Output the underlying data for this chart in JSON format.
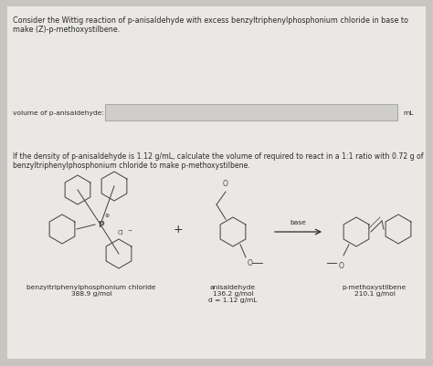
{
  "bg_color": "#c8c5c0",
  "panel_color": "#eae8e4",
  "title_line1": "Consider the Wittig reaction of p-anisaldehyde with excess benzyltriphenylphosphonium chloride in base to",
  "title_line2": "make (Z)-p-methoxystilbene.",
  "reagent1_label": "benzyltriphenylphosphonium chloride\n388.9 g/mol",
  "reagent2_label": "anisaldehyde\n136.2 g/mol\nd = 1.12 g/mL",
  "product_label": "p-methoxystilbene\n210.1 g/mol",
  "arrow_label": "base",
  "question_text": "If the density of p-anisaldehyde is 1.12 g/mL, calculate the volume of required to react in a 1:1 ratio with 0.72 g of\nbenzyltriphenylphosphonium chloride to make p-methoxystilbene.",
  "answer_label": "volume of p-anisaldehyde:",
  "answer_unit": "mL",
  "input_box_color": "#d0ceca",
  "input_box_edge": "#aaaaaa",
  "struct_color": "#4a4a4a",
  "font_size_title": 5.8,
  "font_size_body": 5.6,
  "font_size_label": 5.4,
  "font_size_struct": 5.2,
  "text_color": "#2a2a2a"
}
